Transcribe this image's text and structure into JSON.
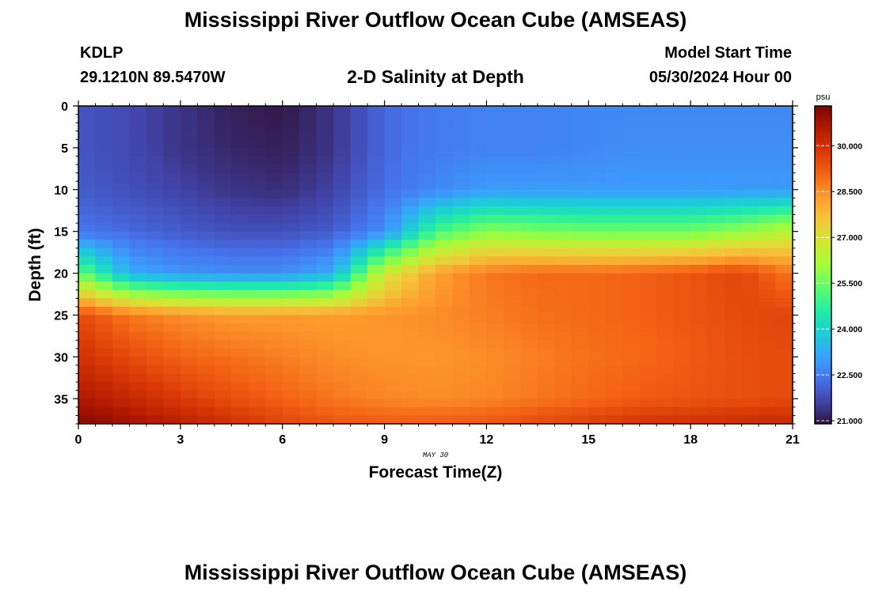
{
  "header": {
    "title": "Mississippi River Outflow Ocean Cube (AMSEAS)",
    "station_id": "KDLP",
    "station_coords": "29.1210N  89.5470W",
    "subtitle": "2-D Salinity at Depth",
    "model_label": "Model Start Time",
    "model_time": "05/30/2024 Hour 00"
  },
  "footer": {
    "title": "Mississippi River Outflow Ocean Cube (AMSEAS)"
  },
  "chart_data": {
    "type": "heatmap",
    "title": "2-D Salinity at Depth",
    "xlabel": "Forecast Time(Z)",
    "ylabel": "Depth (ft)",
    "date_label": "MAY 30",
    "xlim": [
      0,
      21
    ],
    "ylim": [
      38,
      0
    ],
    "x_ticks": [
      0,
      3,
      6,
      9,
      12,
      15,
      18,
      21
    ],
    "y_ticks": [
      0,
      5,
      10,
      15,
      20,
      25,
      30,
      35
    ],
    "colorbar": {
      "unit": "psu",
      "range": [
        20.9,
        31.3
      ],
      "ticks": [
        "30.000",
        "28.500",
        "27.000",
        "25.500",
        "24.000",
        "22.500",
        "21.000"
      ],
      "colors": [
        "#30123b",
        "#4145ab",
        "#4675ed",
        "#39a2fc",
        "#1bcfd4",
        "#24eca6",
        "#61fc6c",
        "#a4fc3b",
        "#d1e834",
        "#f3c63a",
        "#fe9b2d",
        "#f36315",
        "#d93806",
        "#b11901",
        "#7a0403"
      ]
    },
    "time_grid_hours": [
      0,
      1.5,
      3,
      4.5,
      6,
      7.5,
      9,
      10.5,
      12,
      13.5,
      15,
      16.5,
      18,
      19.5,
      21
    ],
    "depth_grid_ft": [
      0,
      5,
      10,
      15,
      20,
      25,
      30,
      35,
      38
    ],
    "salinity_psu": [
      [
        21.9,
        21.7,
        21.4,
        21.1,
        21.0,
        21.4,
        22.2,
        22.5,
        22.6,
        22.6,
        22.7,
        22.7,
        22.7,
        22.7,
        22.7
      ],
      [
        21.9,
        21.7,
        21.4,
        21.2,
        21.1,
        21.4,
        22.2,
        22.5,
        22.6,
        22.6,
        22.7,
        22.8,
        22.8,
        22.8,
        22.8
      ],
      [
        22.0,
        21.8,
        21.6,
        21.4,
        21.3,
        21.6,
        22.3,
        22.7,
        23.0,
        23.0,
        23.0,
        23.0,
        23.0,
        23.0,
        23.0
      ],
      [
        22.4,
        22.2,
        22.0,
        21.8,
        21.8,
        22.0,
        22.8,
        25.0,
        25.8,
        25.6,
        25.5,
        25.5,
        25.5,
        25.9,
        26.5
      ],
      [
        25.5,
        23.3,
        22.9,
        22.8,
        22.8,
        23.3,
        26.8,
        28.2,
        28.8,
        29.0,
        29.0,
        29.1,
        29.3,
        29.6,
        28.8
      ],
      [
        29.5,
        28.8,
        28.5,
        28.3,
        28.3,
        28.3,
        28.4,
        28.5,
        28.7,
        28.9,
        29.0,
        29.1,
        29.3,
        29.5,
        29.6
      ],
      [
        30.0,
        29.5,
        29.1,
        28.9,
        28.7,
        28.5,
        28.4,
        28.4,
        28.5,
        28.7,
        28.9,
        29.0,
        29.2,
        29.4,
        29.5
      ],
      [
        30.6,
        30.2,
        29.8,
        29.4,
        29.1,
        28.8,
        28.6,
        28.5,
        28.6,
        28.8,
        29.0,
        29.2,
        29.3,
        29.4,
        29.5
      ],
      [
        31.2,
        30.8,
        30.4,
        30.0,
        29.6,
        29.3,
        29.2,
        29.2,
        29.3,
        29.5,
        29.7,
        29.9,
        30.0,
        30.1,
        30.2
      ]
    ]
  }
}
